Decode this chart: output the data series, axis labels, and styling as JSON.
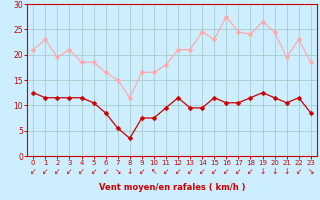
{
  "hours": [
    0,
    1,
    2,
    3,
    4,
    5,
    6,
    7,
    8,
    9,
    10,
    11,
    12,
    13,
    14,
    15,
    16,
    17,
    18,
    19,
    20,
    21,
    22,
    23
  ],
  "wind_mean": [
    12.5,
    11.5,
    11.5,
    11.5,
    11.5,
    10.5,
    8.5,
    5.5,
    3.5,
    7.5,
    7.5,
    9.5,
    11.5,
    9.5,
    9.5,
    11.5,
    10.5,
    10.5,
    11.5,
    12.5,
    11.5,
    10.5,
    11.5,
    8.5
  ],
  "wind_gust": [
    21,
    23,
    19.5,
    21,
    18.5,
    18.5,
    16.5,
    15,
    11.5,
    16.5,
    16.5,
    18,
    21,
    21,
    24.5,
    23,
    27.5,
    24.5,
    24,
    26.5,
    24.5,
    19.5,
    23,
    18.5
  ],
  "mean_color": "#cc0000",
  "gust_color": "#ffaaaa",
  "bg_color": "#cceeff",
  "grid_color": "#aacccc",
  "axis_color": "#cc0000",
  "tick_color": "#cc0000",
  "xlabel": "Vent moyen/en rafales ( km/h )",
  "ylim": [
    0,
    30
  ],
  "yticks": [
    0,
    5,
    10,
    15,
    20,
    25,
    30
  ],
  "marker_size": 2.5,
  "linewidth": 0.9,
  "arrows": [
    "↙",
    "↙",
    "↙",
    "↙",
    "↙",
    "↙",
    "↙",
    "↘",
    "↓",
    "↙",
    "↖",
    "↙",
    "↙",
    "↙",
    "↙",
    "↙",
    "↙",
    "↙",
    "↙",
    "↓",
    "↓",
    "↓",
    "↙",
    "↘"
  ]
}
